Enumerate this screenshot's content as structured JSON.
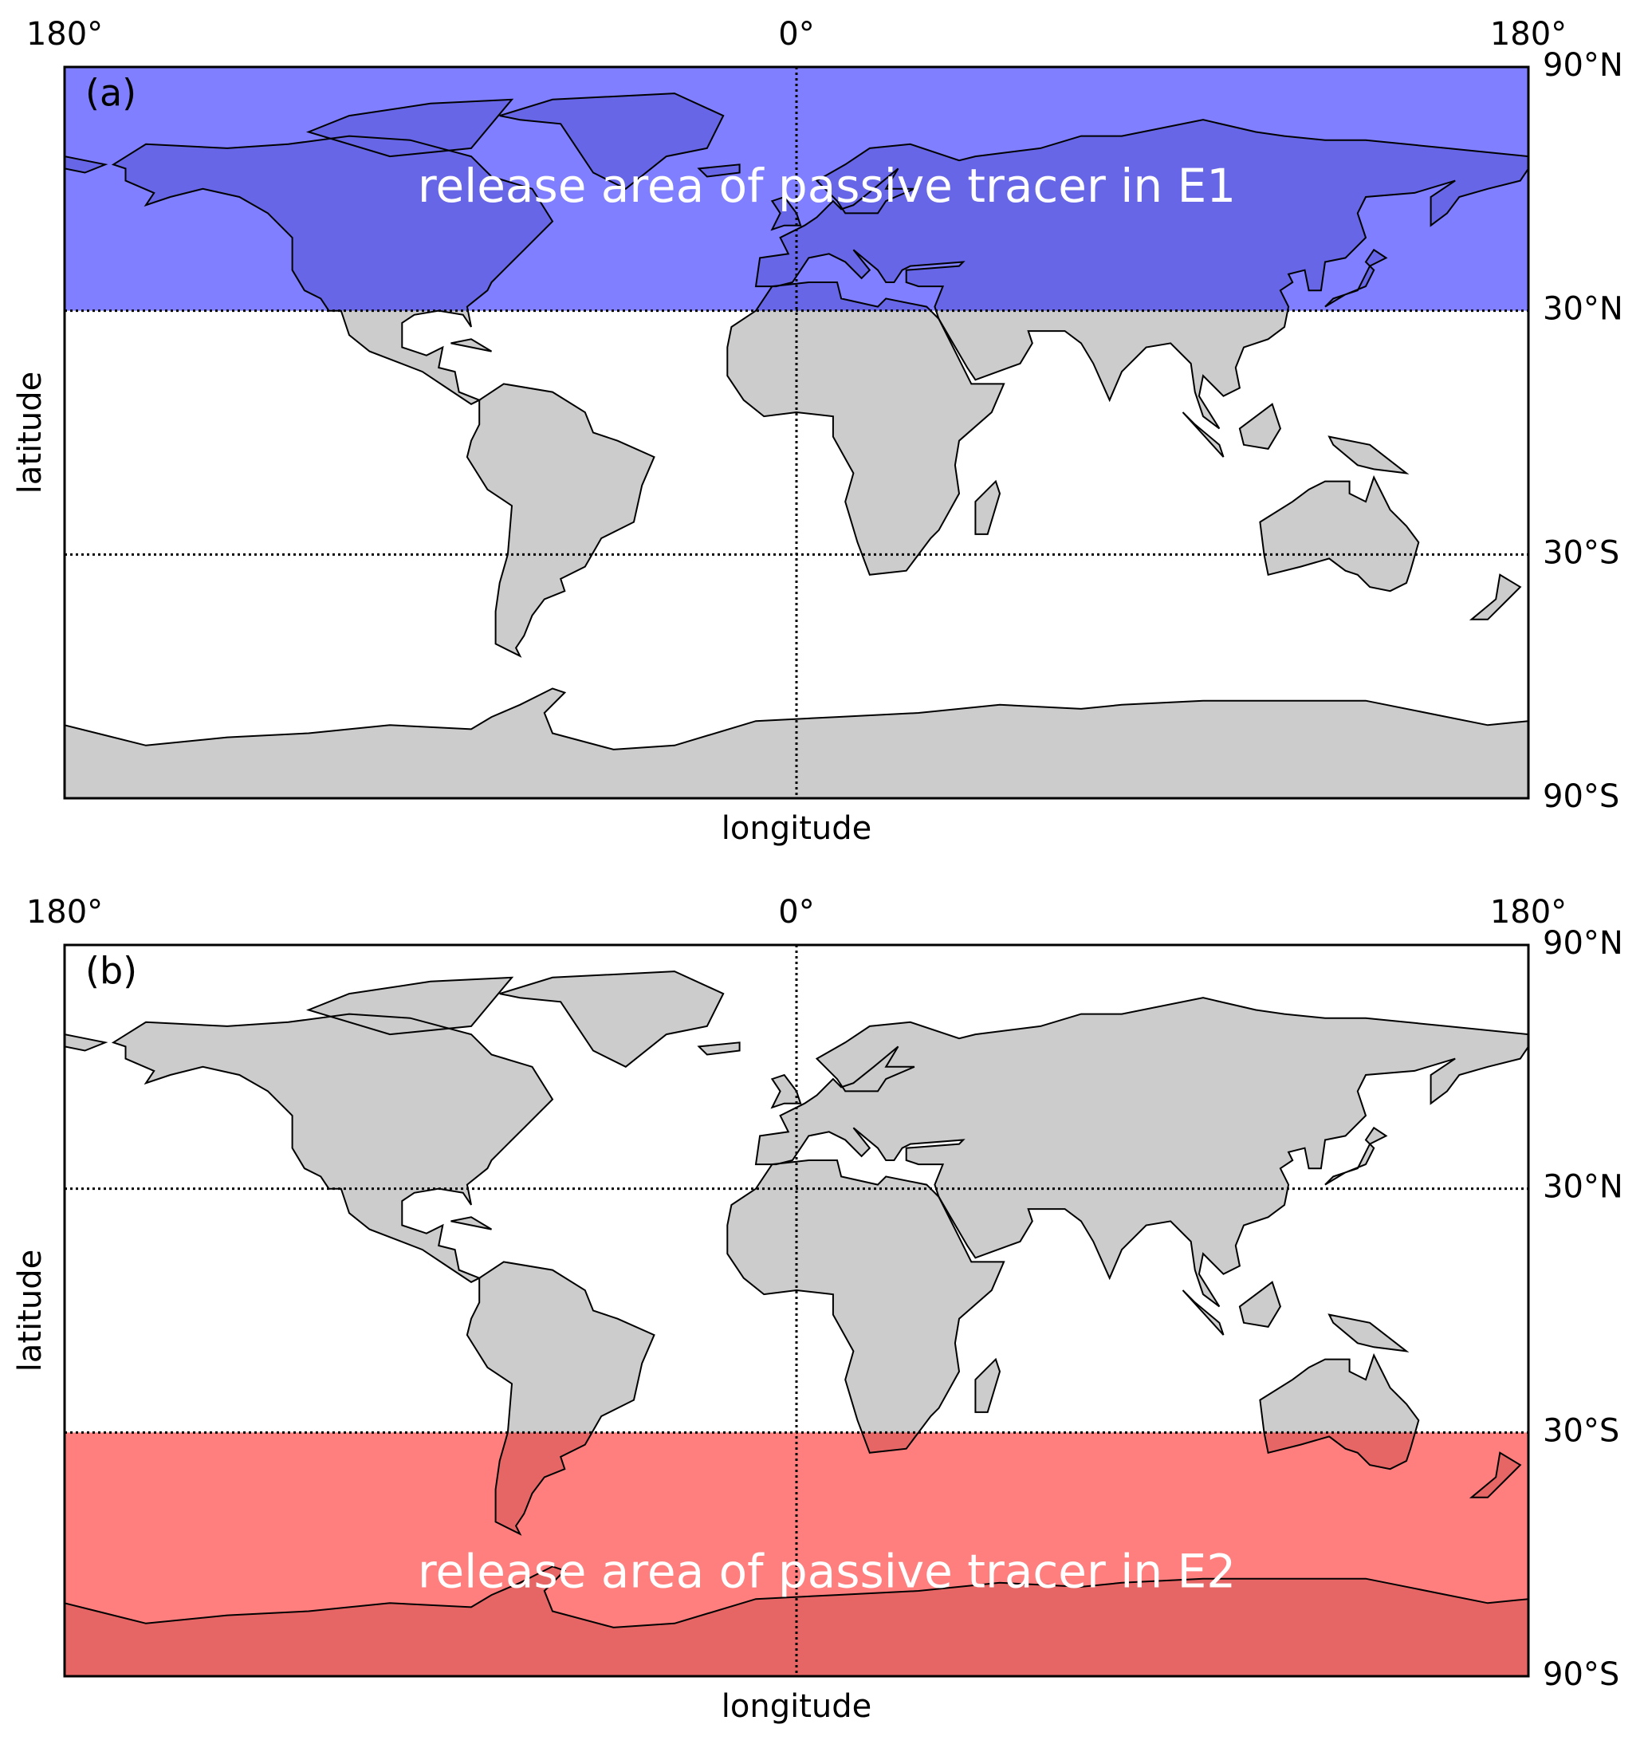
{
  "panels": [
    {
      "label": "(a)",
      "annotation": "release area of passive tracer in E1",
      "xlabel": "longitude",
      "ylabel": "latitude",
      "xlim": [
        -180,
        180
      ],
      "ylim": [
        -90,
        90
      ],
      "xticks": [
        {
          "value": -180,
          "label": "180°"
        },
        {
          "value": 0,
          "label": "0°"
        },
        {
          "value": 180,
          "label": "180°"
        }
      ],
      "yticks": [
        {
          "value": 90,
          "label": "90°N"
        },
        {
          "value": 30,
          "label": "30°N"
        },
        {
          "value": -30,
          "label": "30°S"
        },
        {
          "value": -90,
          "label": "90°S"
        }
      ],
      "release_lat": [
        30,
        90
      ],
      "release_color": "#0000ff"
    },
    {
      "label": "(b)",
      "annotation": "release area of passive tracer in E2",
      "xlabel": "longitude",
      "ylabel": "latitude",
      "xlim": [
        -180,
        180
      ],
      "ylim": [
        -90,
        90
      ],
      "xticks": [
        {
          "value": -180,
          "label": "180°"
        },
        {
          "value": 0,
          "label": "0°"
        },
        {
          "value": 180,
          "label": "180°"
        }
      ],
      "yticks": [
        {
          "value": 90,
          "label": "90°N"
        },
        {
          "value": 30,
          "label": "30°N"
        },
        {
          "value": -30,
          "label": "30°S"
        },
        {
          "value": -90,
          "label": "90°S"
        }
      ],
      "release_lat": [
        -90,
        -30
      ],
      "release_color": "#ff0000"
    }
  ]
}
